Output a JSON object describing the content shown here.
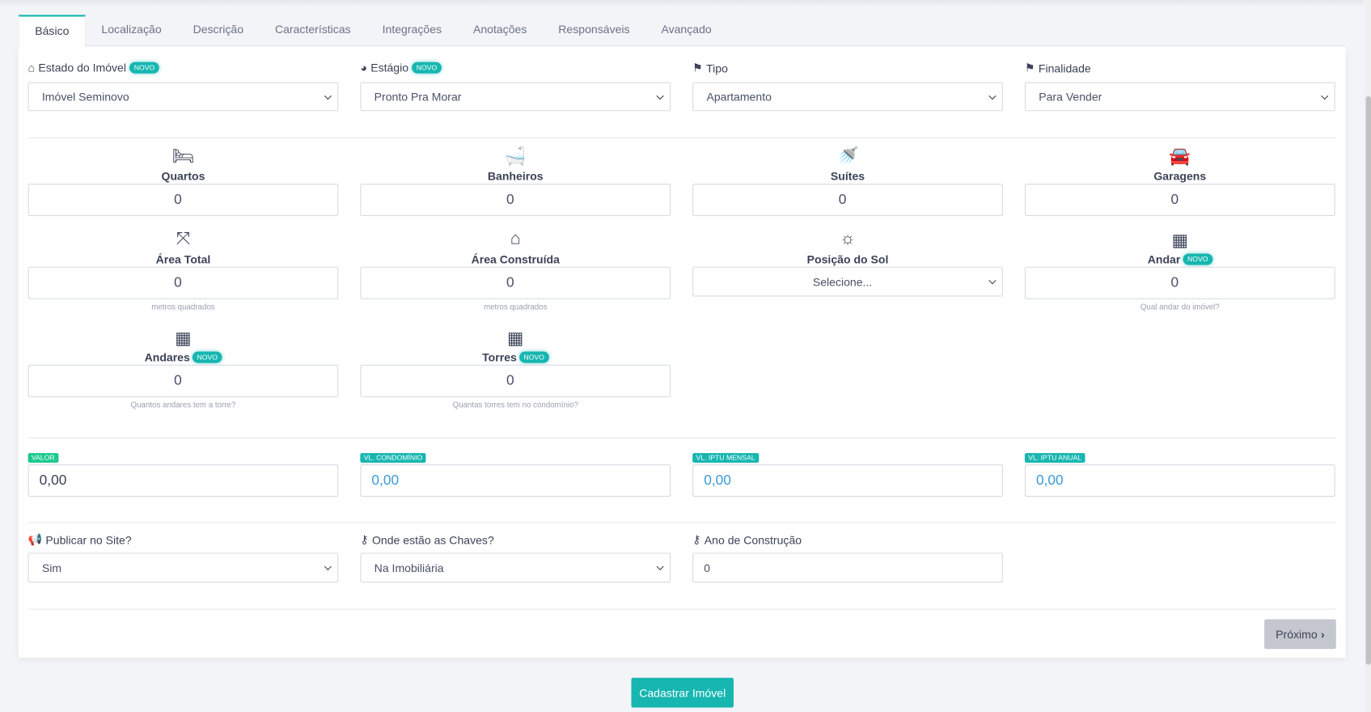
{
  "tabs": [
    "Básico",
    "Localização",
    "Descrição",
    "Características",
    "Integrações",
    "Anotações",
    "Responsáveis",
    "Avançado"
  ],
  "badge_new": "NOVO",
  "row1": [
    {
      "label": "Estado do Imóvel",
      "icon": "home-icon",
      "new": true,
      "value": "Imóvel Seminovo"
    },
    {
      "label": "Estágio",
      "icon": "dashboard-icon",
      "new": true,
      "value": "Pronto Pra Morar"
    },
    {
      "label": "Tipo",
      "icon": "signpost-icon",
      "new": false,
      "value": "Apartamento"
    },
    {
      "label": "Finalidade",
      "icon": "signpost-icon",
      "new": false,
      "value": "Para Vender"
    }
  ],
  "counts": [
    {
      "label": "Quartos",
      "icon": "bed-icon",
      "value": "0"
    },
    {
      "label": "Banheiros",
      "icon": "bathtub-icon",
      "value": "0"
    },
    {
      "label": "Suítes",
      "icon": "shower-icon",
      "value": "0"
    },
    {
      "label": "Garagens",
      "icon": "car-icon",
      "value": "0"
    }
  ],
  "areas": [
    {
      "label": "Área Total",
      "icon": "expand-icon",
      "value": "0",
      "help": "metros quadrados"
    },
    {
      "label": "Área Construída",
      "icon": "home-icon",
      "value": "0",
      "help": "metros quadrados"
    },
    {
      "label": "Posição do Sol",
      "icon": "sun-icon",
      "value": "Selecione..."
    },
    {
      "label": "Andar",
      "icon": "building-icon",
      "value": "0",
      "help": "Qual andar do imóvel?"
    }
  ],
  "towers": [
    {
      "label": "Andares",
      "icon": "building-icon",
      "value": "0",
      "help": "Quantos andares tem a torre?"
    },
    {
      "label": "Torres",
      "icon": "building-icon",
      "value": "0",
      "help": "Quantas torres tem no condomínio?"
    }
  ],
  "money": [
    {
      "label": "VALOR",
      "value": "0,00",
      "color": "#1bc98e"
    },
    {
      "label": "VL. CONDOMÍNIO",
      "value": "0,00",
      "color": "#17b6b0"
    },
    {
      "label": "VL. IPTU MENSAL",
      "value": "0,00",
      "color": "#17b6b0"
    },
    {
      "label": "VL. IPTU ANUAL",
      "value": "0,00",
      "color": "#17b6b0"
    }
  ],
  "last": [
    {
      "label": "Publicar no Site?",
      "icon": "bullhorn-icon",
      "value": "Sim"
    },
    {
      "label": "Onde estão as Chaves?",
      "icon": "key-icon",
      "value": "Na Imobiliária"
    },
    {
      "label": "Ano de Construção",
      "icon": "key-icon",
      "value": "0"
    }
  ],
  "next_label": "Próximo",
  "submit_label": "Cadastrar Imóvel",
  "accent": "#17b6b0"
}
